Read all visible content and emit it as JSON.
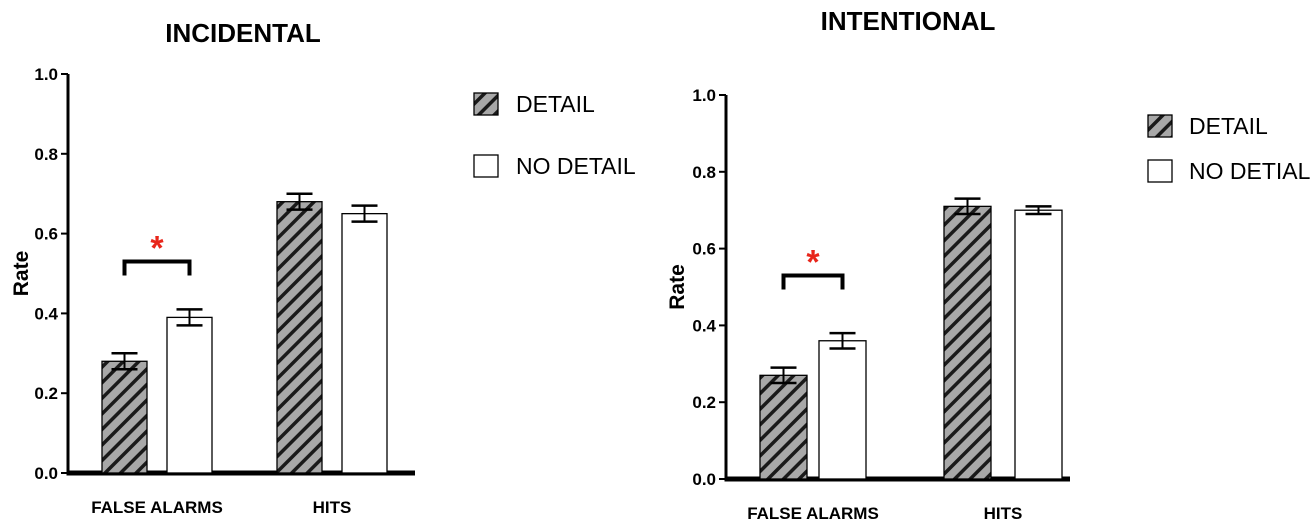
{
  "colors": {
    "hatch_fill": "#a8a8a8",
    "hatch_line": "#1a1a1a",
    "axis": "#000000",
    "significance": "#e8261b"
  },
  "chart_data": [
    {
      "type": "bar",
      "title": "INCIDENTAL",
      "ylabel": "Rate",
      "ylim": [
        0,
        1.0
      ],
      "yticks": [
        "0.0",
        "0.2",
        "0.4",
        "0.6",
        "0.8",
        "1.0"
      ],
      "categories": [
        "FALSE ALARMS",
        "HITS"
      ],
      "series": [
        {
          "name": "DETAIL",
          "pattern": "hatched",
          "values": [
            0.28,
            0.68
          ],
          "errors": [
            0.02,
            0.02
          ]
        },
        {
          "name": "NO DETAIL",
          "pattern": "white",
          "values": [
            0.39,
            0.65
          ],
          "errors": [
            0.02,
            0.02
          ]
        }
      ],
      "legend": "right",
      "annotations": [
        {
          "category": "FALSE ALARMS",
          "text": "*",
          "bracket_y": 0.53
        }
      ]
    },
    {
      "type": "bar",
      "title": "INTENTIONAL",
      "ylabel": "Rate",
      "ylim": [
        0,
        1.0
      ],
      "yticks": [
        "0.0",
        "0.2",
        "0.4",
        "0.6",
        "0.8",
        "1.0"
      ],
      "categories": [
        "FALSE ALARMS",
        "HITS"
      ],
      "series": [
        {
          "name": "DETAIL",
          "pattern": "hatched",
          "values": [
            0.27,
            0.71
          ],
          "errors": [
            0.02,
            0.02
          ]
        },
        {
          "name": "NO DETIAL",
          "pattern": "white",
          "values": [
            0.36,
            0.7
          ],
          "errors": [
            0.02,
            0.01
          ]
        }
      ],
      "legend": "right",
      "annotations": [
        {
          "category": "FALSE ALARMS",
          "text": "*",
          "bracket_y": 0.53
        }
      ]
    }
  ]
}
